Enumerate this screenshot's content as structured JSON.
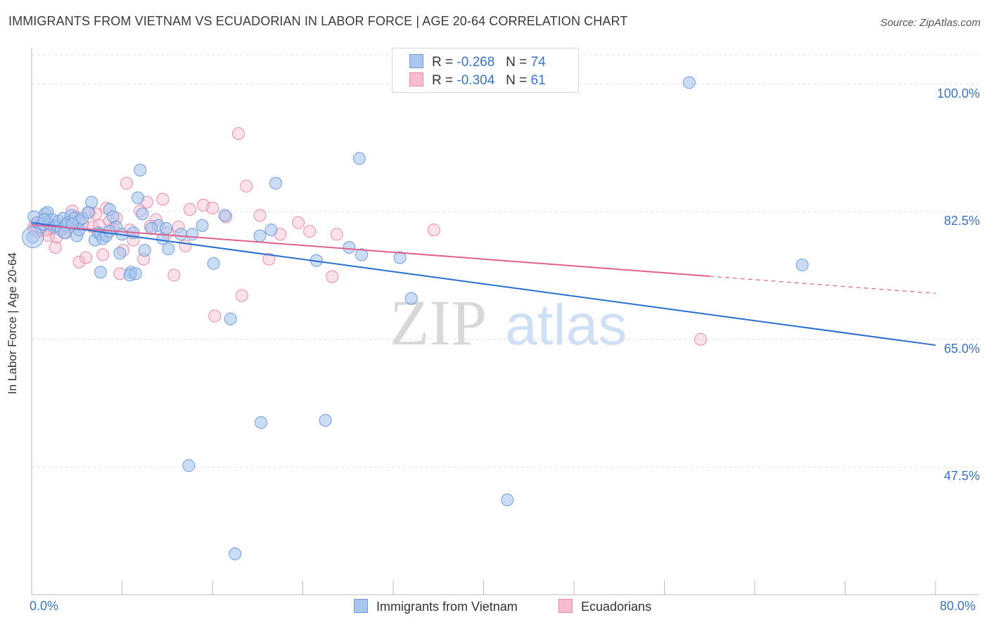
{
  "title": "IMMIGRANTS FROM VIETNAM VS ECUADORIAN IN LABOR FORCE | AGE 20-64 CORRELATION CHART",
  "source": "Source: ZipAtlas.com",
  "watermark": {
    "zip": "ZIP",
    "atlas": "atlas"
  },
  "legend": {
    "rows": [
      {
        "r_label": "R =",
        "r_value": "-0.268",
        "n_label": "N =",
        "n_value": "74"
      },
      {
        "r_label": "R =",
        "r_value": "-0.304",
        "n_label": "N =",
        "n_value": "61"
      }
    ]
  },
  "colors": {
    "series1_fill": "#a9c6ef",
    "series1_stroke": "#6f9bd8",
    "series1_line": "#2a6fd0",
    "series2_fill": "#f7bcd0",
    "series2_stroke": "#e88aaa",
    "series2_line": "#e0608e",
    "axis_label": "#3a72c4",
    "grid": "#e0e0e0"
  },
  "chart_data": {
    "type": "scatter",
    "title": "IMMIGRANTS FROM VIETNAM VS ECUADORIAN IN LABOR FORCE | AGE 20-64 CORRELATION CHART",
    "xlabel": "",
    "ylabel": "In Labor Force | Age 20-64",
    "xlim": [
      0,
      80
    ],
    "ylim": [
      30,
      104
    ],
    "x_tick_labels": [
      "0.0%",
      "80.0%"
    ],
    "y_ticks": [
      47.5,
      65.0,
      82.5,
      100.0
    ],
    "y_tick_labels": [
      "47.5%",
      "65.0%",
      "82.5%",
      "100.0%"
    ],
    "legend_position": "top-center",
    "series": [
      {
        "name": "Immigrants from Vietnam",
        "R": -0.268,
        "N": 74,
        "trend": {
          "x0": 0,
          "y0": 81.0,
          "x1": 80,
          "y1": 64.2,
          "solid_until": 80
        },
        "points": [
          [
            0.2,
            81.8
          ],
          [
            0.5,
            81.0
          ],
          [
            0.8,
            80.4
          ],
          [
            1.0,
            80.8
          ],
          [
            1.2,
            82.2
          ],
          [
            1.4,
            82.4
          ],
          [
            1.6,
            80.8
          ],
          [
            1.8,
            81.4
          ],
          [
            2.0,
            80.4
          ],
          [
            2.2,
            80.6
          ],
          [
            2.4,
            81.2
          ],
          [
            2.6,
            80.0
          ],
          [
            2.8,
            81.6
          ],
          [
            3.0,
            80.6
          ],
          [
            3.2,
            81.0
          ],
          [
            3.5,
            82.0
          ],
          [
            3.8,
            81.6
          ],
          [
            4.0,
            79.2
          ],
          [
            4.2,
            81.2
          ],
          [
            4.5,
            81.6
          ],
          [
            5.0,
            82.4
          ],
          [
            5.3,
            83.8
          ],
          [
            5.6,
            78.6
          ],
          [
            5.9,
            79.6
          ],
          [
            6.1,
            79.4
          ],
          [
            6.3,
            78.8
          ],
          [
            6.6,
            79.2
          ],
          [
            6.9,
            82.8
          ],
          [
            7.2,
            81.8
          ],
          [
            7.5,
            80.4
          ],
          [
            7.8,
            76.8
          ],
          [
            8.0,
            79.4
          ],
          [
            8.8,
            74.2
          ],
          [
            9.0,
            79.6
          ],
          [
            9.4,
            84.4
          ],
          [
            9.6,
            88.2
          ],
          [
            9.8,
            82.2
          ],
          [
            10.0,
            77.2
          ],
          [
            11.2,
            80.6
          ],
          [
            11.6,
            78.8
          ],
          [
            11.9,
            80.2
          ],
          [
            12.1,
            77.4
          ],
          [
            13.2,
            79.4
          ],
          [
            14.2,
            79.4
          ],
          [
            15.1,
            80.6
          ],
          [
            16.1,
            75.4
          ],
          [
            17.1,
            82.0
          ],
          [
            17.6,
            67.8
          ],
          [
            20.2,
            79.2
          ],
          [
            21.2,
            80.0
          ],
          [
            21.6,
            86.4
          ],
          [
            25.2,
            75.8
          ],
          [
            28.1,
            77.6
          ],
          [
            29.2,
            76.6
          ],
          [
            32.6,
            76.2
          ],
          [
            42.1,
            43.0
          ],
          [
            68.2,
            75.2
          ],
          [
            58.2,
            100.2
          ],
          [
            6.1,
            74.2
          ],
          [
            8.7,
            73.8
          ],
          [
            10.6,
            80.2
          ],
          [
            13.9,
            47.7
          ],
          [
            20.3,
            53.6
          ],
          [
            26.0,
            53.9
          ],
          [
            29.0,
            89.8
          ],
          [
            33.6,
            70.6
          ],
          [
            18.0,
            35.6
          ],
          [
            9.2,
            74.0
          ],
          [
            4.2,
            80.0
          ],
          [
            6.9,
            79.8
          ],
          [
            2.9,
            79.6
          ],
          [
            3.6,
            80.8
          ],
          [
            0.1,
            79.0
          ],
          [
            1.1,
            81.4
          ]
        ]
      },
      {
        "name": "Ecuadorians",
        "R": -0.304,
        "N": 61,
        "trend": {
          "x0": 0,
          "y0": 80.7,
          "x1": 80,
          "y1": 71.3,
          "solid_until": 60
        },
        "points": [
          [
            0.3,
            80.6
          ],
          [
            0.6,
            79.8
          ],
          [
            0.9,
            80.4
          ],
          [
            1.2,
            81.6
          ],
          [
            1.5,
            79.2
          ],
          [
            1.8,
            80.2
          ],
          [
            2.1,
            77.6
          ],
          [
            2.4,
            80.4
          ],
          [
            2.7,
            80.8
          ],
          [
            3.0,
            79.6
          ],
          [
            3.3,
            80.4
          ],
          [
            3.6,
            82.6
          ],
          [
            3.9,
            81.8
          ],
          [
            4.2,
            75.6
          ],
          [
            4.5,
            80.8
          ],
          [
            4.8,
            76.2
          ],
          [
            5.1,
            82.4
          ],
          [
            5.4,
            80.4
          ],
          [
            5.7,
            82.2
          ],
          [
            6.0,
            80.6
          ],
          [
            6.3,
            76.6
          ],
          [
            6.6,
            83.0
          ],
          [
            6.9,
            81.2
          ],
          [
            7.2,
            80.2
          ],
          [
            7.5,
            81.6
          ],
          [
            7.8,
            74.0
          ],
          [
            8.1,
            77.2
          ],
          [
            8.4,
            86.4
          ],
          [
            8.7,
            80.0
          ],
          [
            9.0,
            78.6
          ],
          [
            9.6,
            82.6
          ],
          [
            9.9,
            76.0
          ],
          [
            10.2,
            83.8
          ],
          [
            11.0,
            81.4
          ],
          [
            11.6,
            84.2
          ],
          [
            12.0,
            79.6
          ],
          [
            12.6,
            73.8
          ],
          [
            13.0,
            80.4
          ],
          [
            13.6,
            77.8
          ],
          [
            14.0,
            82.8
          ],
          [
            15.2,
            83.4
          ],
          [
            16.0,
            83.0
          ],
          [
            16.2,
            68.2
          ],
          [
            17.2,
            81.8
          ],
          [
            18.3,
            93.2
          ],
          [
            18.6,
            71.0
          ],
          [
            19.0,
            86.0
          ],
          [
            20.2,
            82.0
          ],
          [
            21.0,
            76.0
          ],
          [
            22.0,
            79.4
          ],
          [
            23.6,
            81.0
          ],
          [
            24.6,
            79.8
          ],
          [
            26.6,
            73.6
          ],
          [
            27.0,
            79.4
          ],
          [
            35.6,
            80.0
          ],
          [
            59.2,
            65.0
          ],
          [
            0.4,
            80.2
          ],
          [
            1.3,
            80.0
          ],
          [
            2.2,
            79.0
          ],
          [
            3.1,
            80.9
          ],
          [
            10.5,
            80.5
          ]
        ]
      }
    ]
  },
  "bottom_legend": {
    "series1_label": "Immigrants from Vietnam",
    "series2_label": "Ecuadorians"
  }
}
